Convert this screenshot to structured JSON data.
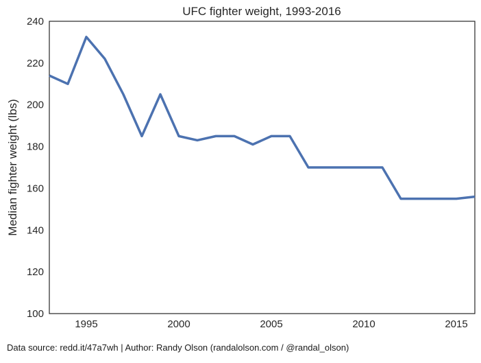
{
  "chart_data": {
    "type": "line",
    "title": "UFC fighter weight, 1993-2016",
    "xlabel": "",
    "ylabel": "Median fighter weight (lbs)",
    "xlim": [
      1993,
      2016
    ],
    "ylim": [
      100,
      240
    ],
    "xticks": [
      1995,
      2000,
      2005,
      2010,
      2015
    ],
    "yticks": [
      100,
      120,
      140,
      160,
      180,
      200,
      220,
      240
    ],
    "grid": false,
    "series": [
      {
        "color": "#4c72b0",
        "x": [
          1993,
          1994,
          1995,
          1996,
          1997,
          1998,
          1999,
          2000,
          2001,
          2002,
          2003,
          2004,
          2005,
          2006,
          2007,
          2008,
          2009,
          2010,
          2011,
          2012,
          2013,
          2014,
          2015,
          2016
        ],
        "y": [
          214,
          210,
          232.5,
          222,
          205,
          185,
          205,
          185,
          183,
          185,
          185,
          181,
          185,
          185,
          170,
          170,
          170,
          170,
          170,
          155,
          155,
          155,
          155,
          156
        ]
      }
    ]
  },
  "footer": {
    "text": "Data source: redd.it/47a7wh | Author: Randy Olson (randalolson.com / @randal_olson)"
  }
}
